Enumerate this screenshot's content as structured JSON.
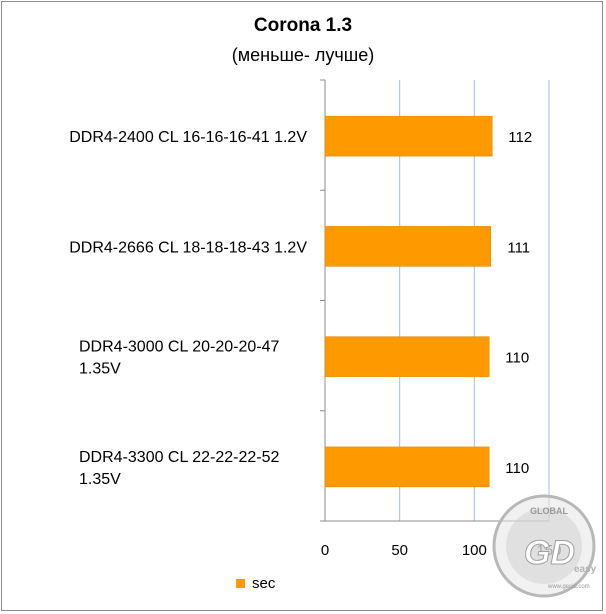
{
  "chart_data": {
    "type": "bar",
    "orientation": "horizontal",
    "title": "Corona 1.3",
    "subtitle": "(меньше- лучше)",
    "categories": [
      [
        "DDR4-2400 CL 16-16-16-41 1.2V"
      ],
      [
        "DDR4-2666 CL 18-18-18-43 1.2V"
      ],
      [
        "DDR4-3000 CL 20-20-20-47",
        "1.35V"
      ],
      [
        "DDR4-3300 CL 22-22-22-52",
        "1.35V"
      ]
    ],
    "series": [
      {
        "name": "sec",
        "values": [
          112,
          111,
          110,
          110
        ]
      }
    ],
    "xlim": [
      0,
      150
    ],
    "xticks": [
      "0",
      "50",
      "100",
      "150"
    ],
    "grid": "vertical",
    "legend_position": "bottom",
    "bar_color": "#ff9900",
    "grid_color": "#a9bedc"
  },
  "watermark": {
    "text_top": "GLOBAL",
    "text_main": "GD",
    "text_side": "easy",
    "text_url": "www.gecid.com"
  }
}
